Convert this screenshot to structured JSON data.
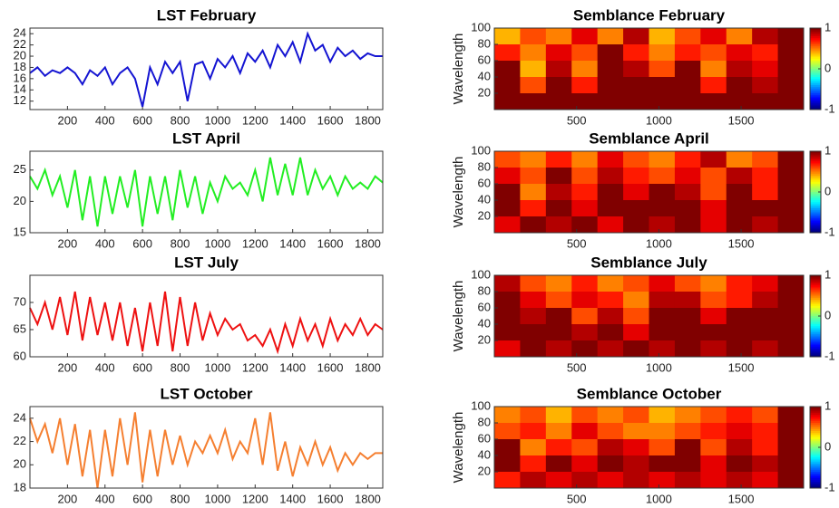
{
  "chart_data": [
    {
      "type": "line",
      "title": "LST February",
      "color": "#1414d2",
      "x": [
        0,
        40,
        80,
        120,
        160,
        200,
        240,
        280,
        320,
        360,
        400,
        440,
        480,
        520,
        560,
        600,
        640,
        680,
        720,
        760,
        800,
        840,
        880,
        920,
        960,
        1000,
        1040,
        1080,
        1120,
        1160,
        1200,
        1240,
        1280,
        1320,
        1360,
        1400,
        1440,
        1480,
        1520,
        1560,
        1600,
        1640,
        1680,
        1720,
        1760,
        1800,
        1840,
        1880
      ],
      "values": [
        17,
        18,
        16.5,
        17.5,
        17,
        18,
        17,
        15,
        17.5,
        16.5,
        18,
        15,
        17,
        18,
        16,
        11,
        18,
        15,
        19,
        17,
        19,
        12,
        18.5,
        19,
        16,
        19.5,
        18,
        20,
        17,
        20.5,
        19,
        21,
        18,
        22,
        20,
        22.5,
        19,
        24,
        21,
        22,
        19,
        21.5,
        20,
        21,
        19.5,
        20.5,
        20,
        20
      ],
      "xlim": [
        0,
        1880
      ],
      "xticks": [
        200,
        400,
        600,
        800,
        1000,
        1200,
        1400,
        1600,
        1800
      ],
      "ylim": [
        10.5,
        25
      ],
      "yticks": [
        12,
        14,
        16,
        18,
        20,
        22,
        24
      ]
    },
    {
      "type": "line",
      "title": "LST April",
      "color": "#22ee22",
      "x": [
        0,
        40,
        80,
        120,
        160,
        200,
        240,
        280,
        320,
        360,
        400,
        440,
        480,
        520,
        560,
        600,
        640,
        680,
        720,
        760,
        800,
        840,
        880,
        920,
        960,
        1000,
        1040,
        1080,
        1120,
        1160,
        1200,
        1240,
        1280,
        1320,
        1360,
        1400,
        1440,
        1480,
        1520,
        1560,
        1600,
        1640,
        1680,
        1720,
        1760,
        1800,
        1840,
        1880
      ],
      "values": [
        24,
        22,
        25,
        21,
        24,
        19,
        25,
        17,
        24,
        16,
        24,
        18,
        24,
        19,
        25,
        16,
        24,
        18,
        24,
        17,
        25,
        19,
        24,
        18,
        23,
        20,
        24,
        22,
        23,
        21,
        25,
        20,
        27,
        21,
        26,
        21,
        27,
        21,
        25,
        22,
        24,
        21,
        24,
        22,
        23,
        22,
        24,
        23
      ],
      "xlim": [
        0,
        1880
      ],
      "xticks": [
        200,
        400,
        600,
        800,
        1000,
        1200,
        1400,
        1600,
        1800
      ],
      "ylim": [
        15,
        28
      ],
      "yticks": [
        15,
        20,
        25
      ]
    },
    {
      "type": "line",
      "title": "LST July",
      "color": "#ee1111",
      "x": [
        0,
        40,
        80,
        120,
        160,
        200,
        240,
        280,
        320,
        360,
        400,
        440,
        480,
        520,
        560,
        600,
        640,
        680,
        720,
        760,
        800,
        840,
        880,
        920,
        960,
        1000,
        1040,
        1080,
        1120,
        1160,
        1200,
        1240,
        1280,
        1320,
        1360,
        1400,
        1440,
        1480,
        1520,
        1560,
        1600,
        1640,
        1680,
        1720,
        1760,
        1800,
        1840,
        1880
      ],
      "values": [
        69,
        66,
        70,
        65,
        71,
        64,
        72,
        63,
        71,
        64,
        70,
        63,
        70,
        62,
        69,
        61,
        70,
        62,
        72,
        61,
        71,
        62,
        70,
        63,
        68,
        64,
        67,
        65,
        66,
        63,
        64,
        62,
        65,
        61,
        66,
        62,
        67,
        63,
        66,
        62,
        67,
        63,
        66,
        64,
        67,
        64,
        66,
        65
      ],
      "xlim": [
        0,
        1880
      ],
      "xticks": [
        200,
        400,
        600,
        800,
        1000,
        1200,
        1400,
        1600,
        1800
      ],
      "ylim": [
        60,
        75
      ],
      "yticks": [
        60,
        65,
        70
      ]
    },
    {
      "type": "line",
      "title": "LST October",
      "color": "#f57f30",
      "x": [
        0,
        40,
        80,
        120,
        160,
        200,
        240,
        280,
        320,
        360,
        400,
        440,
        480,
        520,
        560,
        600,
        640,
        680,
        720,
        760,
        800,
        840,
        880,
        920,
        960,
        1000,
        1040,
        1080,
        1120,
        1160,
        1200,
        1240,
        1280,
        1320,
        1360,
        1400,
        1440,
        1480,
        1520,
        1560,
        1600,
        1640,
        1680,
        1720,
        1760,
        1800,
        1840,
        1880
      ],
      "values": [
        24,
        22,
        23.5,
        21,
        24,
        20,
        23.5,
        19,
        23,
        18,
        23,
        19,
        24,
        20,
        24.5,
        18.5,
        23,
        19,
        23,
        20,
        22.5,
        20,
        22,
        21,
        22.5,
        21,
        23,
        20.5,
        22,
        21,
        24,
        20,
        24.5,
        19.5,
        22,
        19,
        21.5,
        20,
        22,
        20,
        21.5,
        19.5,
        21,
        20,
        21,
        20.5,
        21,
        21
      ],
      "xlim": [
        0,
        1880
      ],
      "xticks": [
        200,
        400,
        600,
        800,
        1000,
        1200,
        1400,
        1600,
        1800
      ],
      "ylim": [
        18,
        25
      ],
      "yticks": [
        18,
        20,
        22,
        24
      ]
    },
    {
      "type": "heatmap",
      "title": "Semblance February",
      "y_label": "Wavelength",
      "z": [
        [
          0.4,
          0.6,
          0.5,
          0.8,
          0.5,
          0.9,
          0.4,
          0.6,
          0.8,
          0.5,
          0.9,
          1
        ],
        [
          0.7,
          0.5,
          0.8,
          0.6,
          1,
          0.7,
          0.5,
          0.7,
          0.6,
          0.8,
          0.7,
          1
        ],
        [
          1,
          0.4,
          0.9,
          0.5,
          1,
          0.9,
          0.6,
          1,
          0.5,
          0.9,
          0.8,
          1
        ],
        [
          1,
          0.6,
          1,
          0.7,
          1,
          1,
          1,
          1,
          0.7,
          1,
          0.9,
          1
        ],
        [
          1,
          1,
          1,
          1,
          1,
          1,
          1,
          1,
          1,
          1,
          1,
          1
        ]
      ],
      "xlim": [
        0,
        1880
      ],
      "xticks": [
        500,
        1000,
        1500
      ],
      "ylim": [
        0,
        100
      ],
      "yticks": [
        20,
        40,
        60,
        80,
        100
      ],
      "clim": [
        -1,
        1
      ],
      "cticks": [
        -1,
        0,
        1
      ]
    },
    {
      "type": "heatmap",
      "title": "Semblance April",
      "y_label": "Wavelength",
      "z": [
        [
          0.6,
          0.5,
          0.7,
          0.5,
          0.8,
          0.6,
          0.5,
          0.7,
          0.9,
          0.5,
          0.6,
          1
        ],
        [
          0.8,
          0.6,
          1,
          0.6,
          0.9,
          0.7,
          0.6,
          0.8,
          0.6,
          0.9,
          0.7,
          1
        ],
        [
          1,
          0.5,
          0.9,
          0.7,
          1,
          0.8,
          1,
          0.9,
          0.6,
          1,
          0.7,
          1
        ],
        [
          1,
          0.7,
          1,
          0.8,
          1,
          1,
          1,
          1,
          0.8,
          1,
          1,
          1
        ],
        [
          0.8,
          1,
          0.9,
          1,
          0.8,
          1,
          0.9,
          1,
          0.8,
          1,
          0.9,
          1
        ]
      ],
      "xlim": [
        0,
        1880
      ],
      "xticks": [
        500,
        1000,
        1500
      ],
      "ylim": [
        0,
        100
      ],
      "yticks": [
        20,
        40,
        60,
        80,
        100
      ],
      "clim": [
        -1,
        1
      ],
      "cticks": [
        -1,
        0,
        1
      ]
    },
    {
      "type": "heatmap",
      "title": "Semblance July",
      "y_label": "Wavelength",
      "z": [
        [
          0.9,
          0.6,
          0.5,
          0.7,
          0.5,
          0.6,
          0.8,
          0.6,
          0.5,
          0.7,
          0.8,
          1
        ],
        [
          1,
          0.8,
          0.6,
          0.8,
          0.7,
          0.5,
          0.9,
          0.9,
          0.6,
          0.7,
          0.9,
          1
        ],
        [
          1,
          0.9,
          1,
          0.6,
          0.9,
          0.6,
          1,
          1,
          0.8,
          1,
          1,
          1
        ],
        [
          1,
          1,
          1,
          0.9,
          1,
          0.8,
          1,
          1,
          1,
          1,
          1,
          1
        ],
        [
          0.8,
          1,
          0.9,
          1,
          0.9,
          1,
          0.9,
          1,
          0.9,
          1,
          0.9,
          1
        ]
      ],
      "xlim": [
        0,
        1880
      ],
      "xticks": [
        500,
        1000,
        1500
      ],
      "ylim": [
        0,
        100
      ],
      "yticks": [
        20,
        40,
        60,
        80,
        100
      ],
      "clim": [
        -1,
        1
      ],
      "cticks": [
        -1,
        0,
        1
      ]
    },
    {
      "type": "heatmap",
      "title": "Semblance October",
      "y_label": "Wavelength",
      "z": [
        [
          0.5,
          0.6,
          0.4,
          0.6,
          0.5,
          0.6,
          0.4,
          0.5,
          0.6,
          0.7,
          0.6,
          1
        ],
        [
          0.6,
          0.7,
          0.5,
          0.8,
          0.6,
          0.5,
          0.5,
          0.6,
          0.7,
          0.8,
          0.7,
          1
        ],
        [
          1,
          0.5,
          0.7,
          0.6,
          0.9,
          0.8,
          0.6,
          1,
          0.6,
          0.9,
          0.7,
          1
        ],
        [
          1,
          0.7,
          1,
          0.8,
          1,
          0.9,
          1,
          1,
          0.8,
          1,
          0.9,
          1
        ],
        [
          0.7,
          0.9,
          0.8,
          0.9,
          0.8,
          0.9,
          0.8,
          0.9,
          0.8,
          0.9,
          0.8,
          1
        ]
      ],
      "xlim": [
        0,
        1880
      ],
      "xticks": [
        500,
        1000,
        1500
      ],
      "ylim": [
        0,
        100
      ],
      "yticks": [
        20,
        40,
        60,
        80,
        100
      ],
      "clim": [
        -1,
        1
      ],
      "cticks": [
        -1,
        0,
        1
      ]
    }
  ]
}
